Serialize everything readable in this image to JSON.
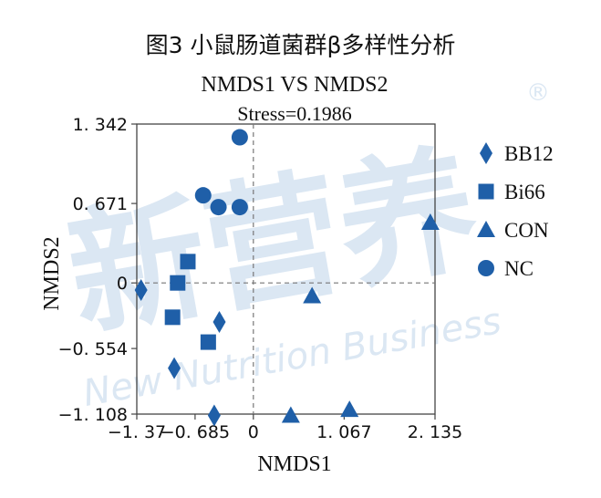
{
  "figure_title": "图3 小鼠肠道菌群β多样性分析",
  "watermark": {
    "text": "新营养",
    "subtext": "New Nutrition Business",
    "mark": "®",
    "color": "#dbe7f3"
  },
  "chart_data": {
    "type": "scatter",
    "title": "NMDS1 VS NMDS2",
    "subtitle": "Stress=0.1986",
    "xlabel": "NMDS1",
    "ylabel": "NMDS2",
    "xlim": [
      -1.37,
      2.135
    ],
    "ylim": [
      -1.108,
      1.342
    ],
    "xticks": [
      {
        "value": -1.37,
        "label": "−1. 37"
      },
      {
        "value": -0.685,
        "label": "−0. 685"
      },
      {
        "value": 0,
        "label": "0"
      },
      {
        "value": 1.067,
        "label": "1. 067"
      },
      {
        "value": 2.135,
        "label": "2. 135"
      }
    ],
    "yticks": [
      {
        "value": 1.342,
        "label": "1. 342"
      },
      {
        "value": 0.671,
        "label": "0. 671"
      },
      {
        "value": 0,
        "label": "0"
      },
      {
        "value": -0.554,
        "label": "−0. 554"
      },
      {
        "value": -1.108,
        "label": "−1. 108"
      }
    ],
    "reference_lines": {
      "x": 0,
      "y": 0,
      "style": "dashed"
    },
    "marker_color": "#1f5fa8",
    "legend_position": "right",
    "series": [
      {
        "name": "BB12",
        "marker": "diamond",
        "points": [
          [
            -1.32,
            -0.06
          ],
          [
            -0.93,
            -0.72
          ],
          [
            -0.4,
            -0.33
          ],
          [
            -0.46,
            -1.12
          ]
        ]
      },
      {
        "name": "Bi66",
        "marker": "square",
        "points": [
          [
            -0.89,
            0.0
          ],
          [
            -0.77,
            0.18
          ],
          [
            -0.95,
            -0.29
          ],
          [
            -0.53,
            -0.5
          ]
        ]
      },
      {
        "name": "CON",
        "marker": "triangle",
        "points": [
          [
            2.08,
            0.51
          ],
          [
            0.69,
            -0.11
          ],
          [
            0.44,
            -1.12
          ],
          [
            1.13,
            -1.07
          ]
        ]
      },
      {
        "name": "NC",
        "marker": "circle",
        "points": [
          [
            -0.16,
            1.23
          ],
          [
            -0.59,
            0.74
          ],
          [
            -0.41,
            0.64
          ],
          [
            -0.16,
            0.64
          ]
        ]
      }
    ]
  }
}
